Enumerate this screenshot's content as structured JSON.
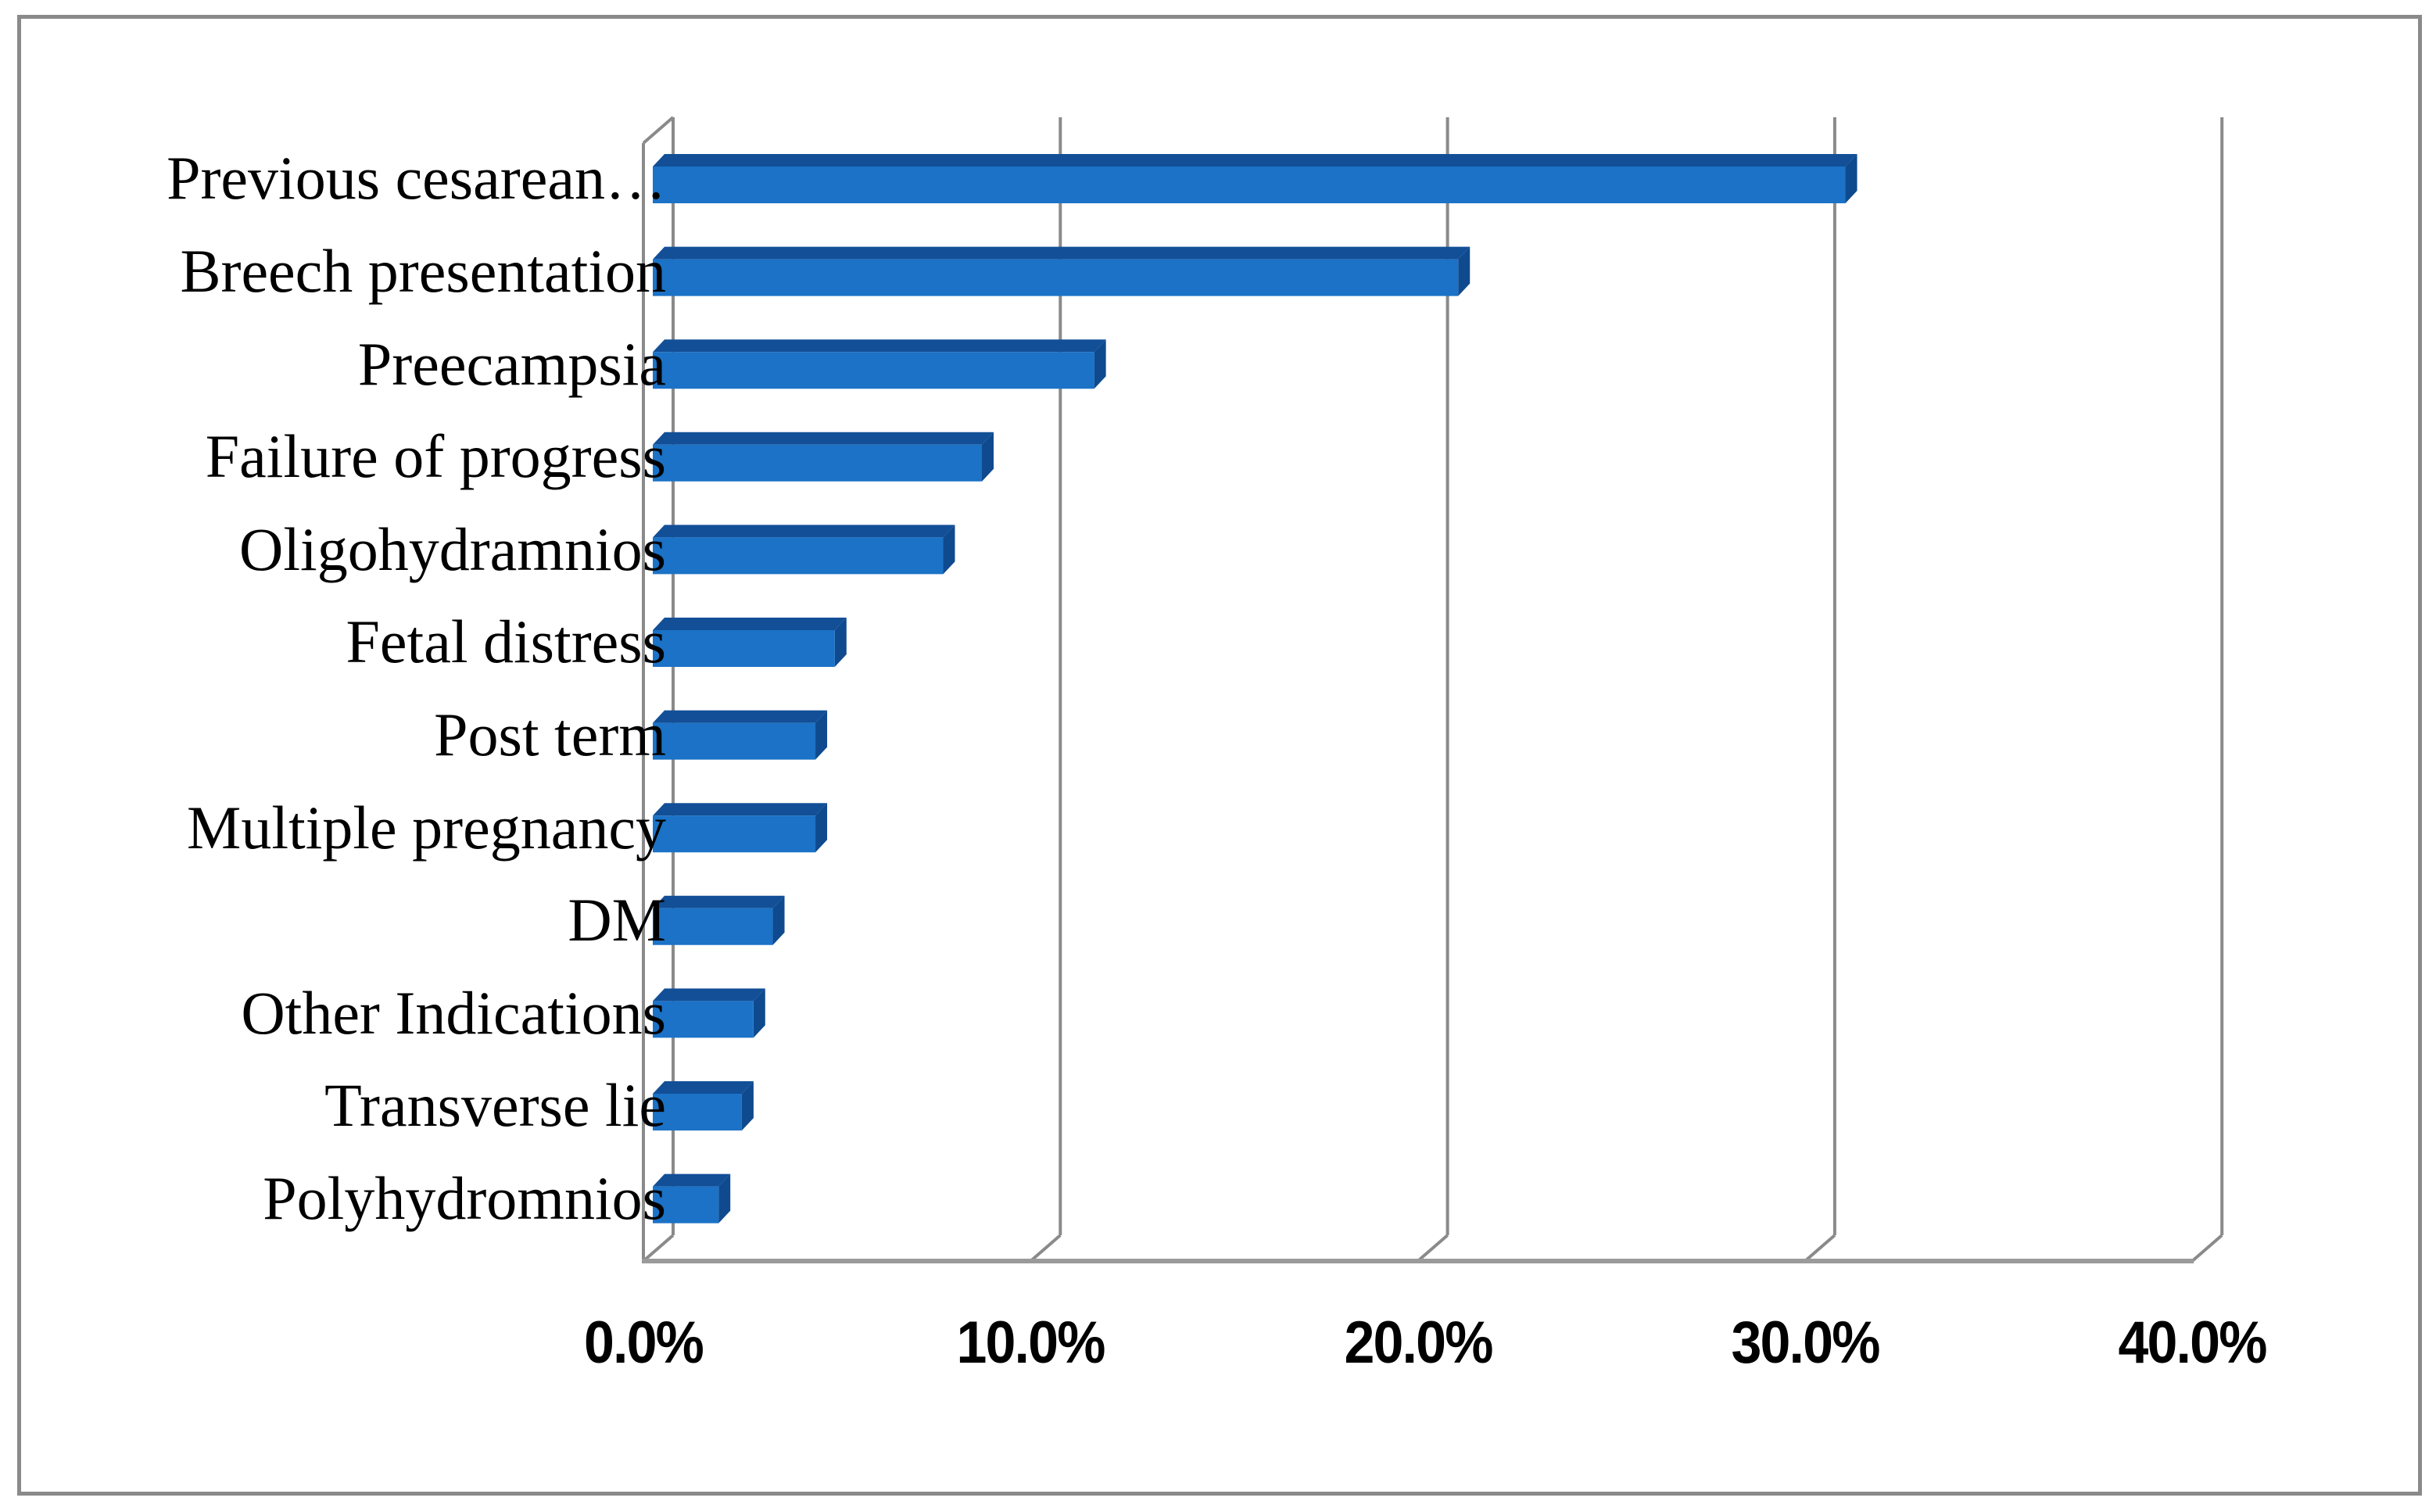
{
  "figure": {
    "background": "#ffffff",
    "border_color": "#8a8a8a"
  },
  "chart_data": {
    "type": "bar",
    "orientation": "horizontal",
    "style": "3d-bevel",
    "title": "",
    "xlabel": "",
    "ylabel": "",
    "categories": [
      "Previous cesarean…",
      "Breech presentation",
      "Preecampsia",
      "Failure of progress",
      "Oligohydramnios",
      "Fetal distress",
      "Post term",
      "Multiple pregnancy",
      "DM",
      "Other Indications",
      "Transverse lie",
      "Polyhydromnios"
    ],
    "values": [
      30.8,
      20.8,
      11.4,
      8.5,
      7.5,
      4.7,
      4.2,
      4.2,
      3.1,
      2.6,
      2.3,
      1.7
    ],
    "unit": "%",
    "xlim": [
      0,
      40
    ],
    "x_ticks": [
      0,
      10,
      20,
      30,
      40
    ],
    "x_tick_labels": [
      "0.0%",
      "10.0%",
      "20.0%",
      "30.0%",
      "40.0%"
    ],
    "gridlines": "vertical",
    "legend": "none",
    "colors": {
      "bar_front": "#1b72c6",
      "bar_top": "#124f97",
      "bar_end": "#0f4a8e",
      "gridline": "#8a8a8a",
      "floor_line": "#9a9a9a"
    }
  }
}
